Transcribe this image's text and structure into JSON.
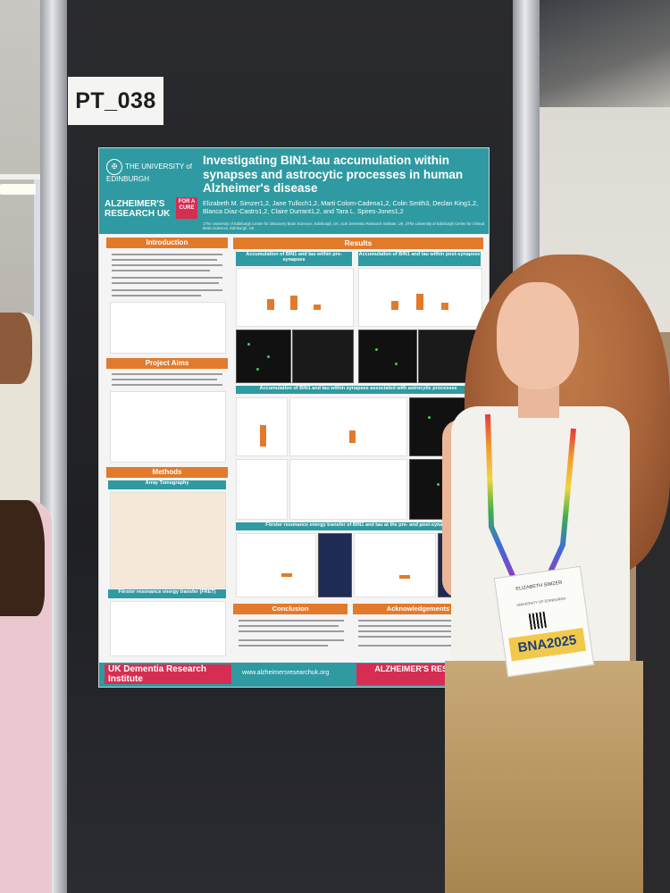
{
  "board_tag": "PT_038",
  "poster": {
    "university": "THE UNIVERSITY of EDINBURGH",
    "charity": "ALZHEIMER'S RESEARCH UK",
    "charity_tagline": "FOR A CURE",
    "title": "Investigating BIN1-tau accumulation within synapses and astrocytic processes in human Alzheimer's disease",
    "authors": "Elizabeth M. Simzer1,2, Jane Tulloch1,2, Marti Colom-Cadena1,2, Colin Smith3, Declan King1,2, Blanca Díaz-Castro1,2, Claire Durrant1,2, and Tara L. Spires-Jones1,2",
    "affiliations": "1The University of Edinburgh Centre for Discovery Brain Sciences, Edinburgh, UK, 2UK Dementia Research Institute, UK, 3The University of Edinburgh Centre for Clinical Brain Sciences, Edinburgh, UK",
    "sections": {
      "introduction": "Introduction",
      "project_aims": "Project Aims",
      "methods": "Methods",
      "array_tomography": "Array Tomography",
      "fret": "Förster resonance energy transfer (FRET)",
      "results": "Results",
      "results_sub1": "Accumulation of BIN1 and tau within pre-synapses",
      "results_sub2": "Accumulation of BIN1 and tau within post-synapses",
      "results_sub3": "Accumulation of BIN1 and tau within synapses associated with astrocytic processes",
      "results_sub4": "Förster resonance energy transfer of BIN1 and tau at the pre- and post-synapse",
      "conclusion": "Conclusion",
      "acknowledgements": "Acknowledgements"
    },
    "footer": {
      "ukdri": "UK Dementia Research Institute",
      "url": "www.alzheimersresearchuk.org",
      "charity": "ALZHEIMER'S RESEARCH UK"
    }
  },
  "badge": {
    "name": "ELIZABETH SIMZER",
    "org": "UNIVERSITY OF EDINBURGH",
    "event": "BNA2025"
  }
}
